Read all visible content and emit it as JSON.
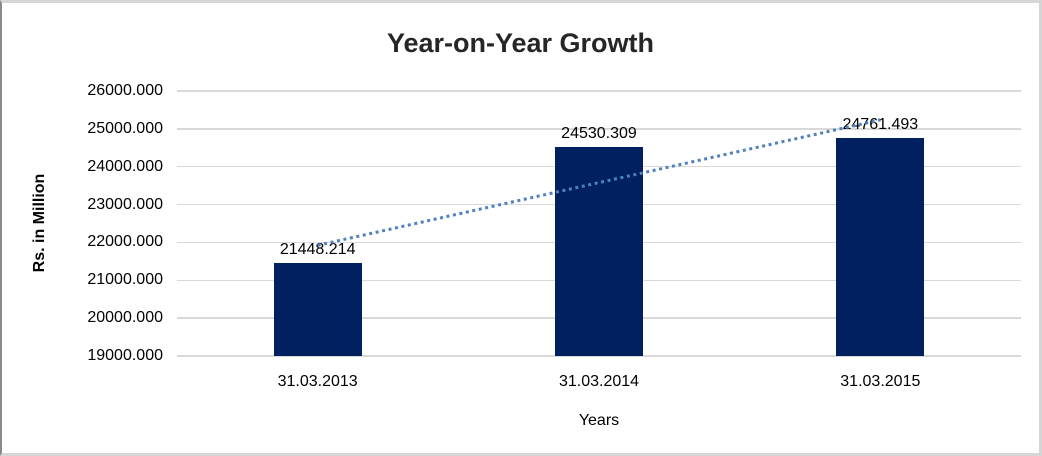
{
  "chart_data": {
    "type": "bar",
    "title": "Year-on-Year Growth",
    "xlabel": "Years",
    "ylabel": "Rs. in Million",
    "categories": [
      "31.03.2013",
      "31.03.2014",
      "31.03.2015"
    ],
    "values": [
      21448.214,
      24530.309,
      24761.493
    ],
    "data_labels": [
      "21448.214",
      "24530.309",
      "24761.493"
    ],
    "y_ticks": [
      "26000.000",
      "25000.000",
      "24000.000",
      "23000.000",
      "22000.000",
      "21000.000",
      "20000.000",
      "19000.000"
    ],
    "ylim": [
      19000,
      26000
    ],
    "y_tick_step": 1000,
    "grid": true,
    "legend_position": "none",
    "trendline": {
      "type": "linear",
      "style": "dotted"
    },
    "colors": {
      "bar": "#002060",
      "trendline": "#4f81bd",
      "gridline": "#d9d9d9",
      "title_text": "#262626",
      "label_text": "#000000"
    }
  }
}
